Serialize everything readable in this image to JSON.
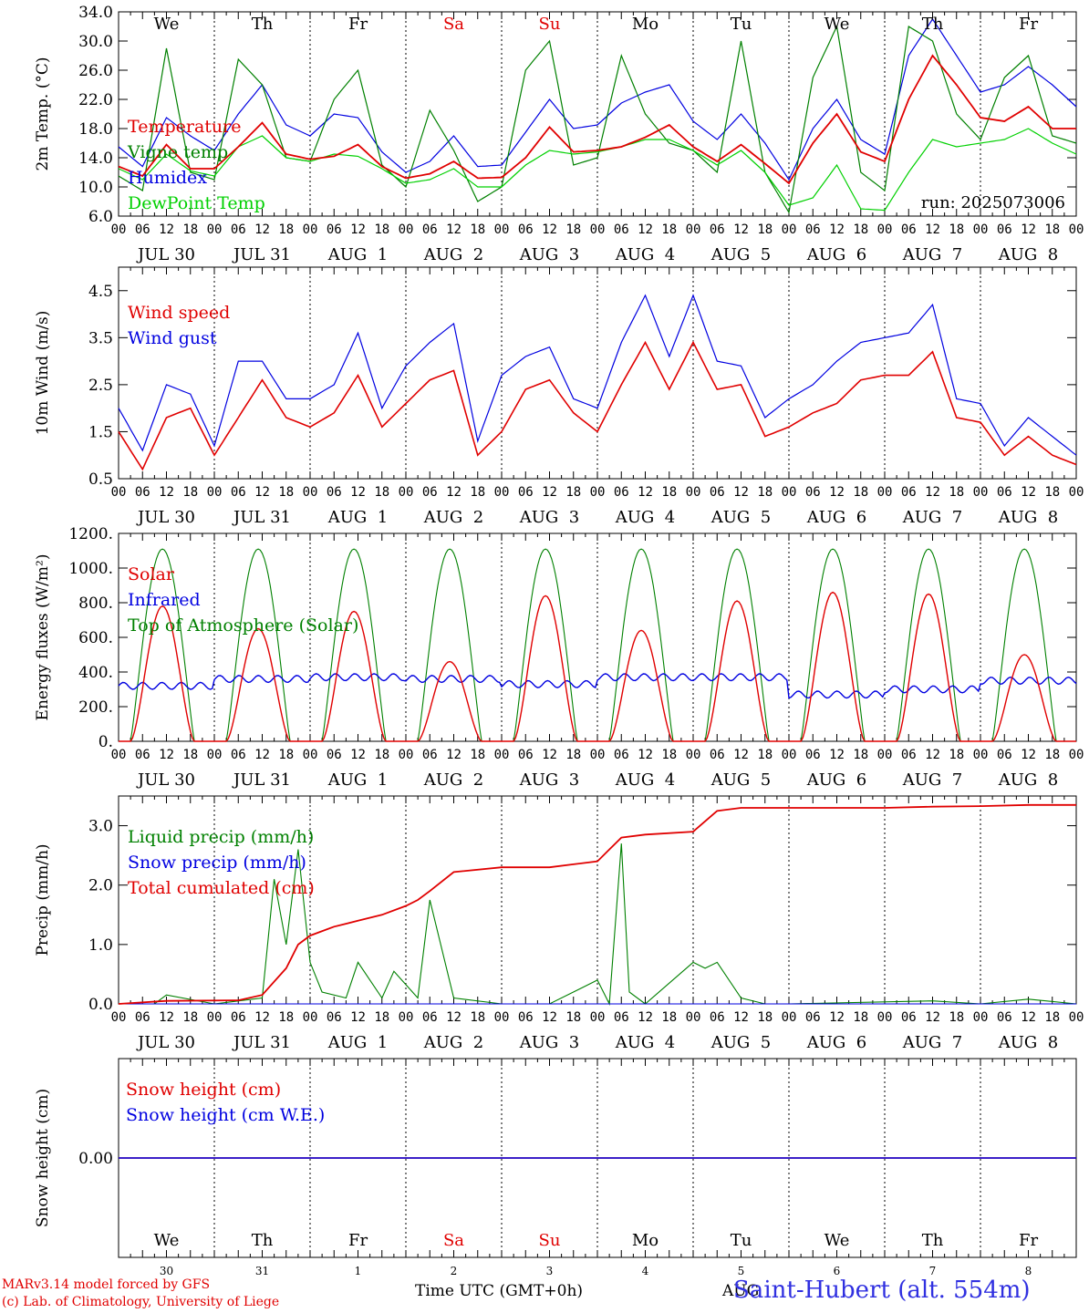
{
  "footer": {
    "model": "MARv3.14 model forced by GFS",
    "copyright": "(c) Lab. of Climatology, University of Liege",
    "time_label": "Time UTC (GMT+0h)",
    "aug_label": "AUG",
    "station": "Saint-Hubert (alt. 554m)"
  },
  "run_label": "run: 2025073006",
  "weekdays": [
    "We",
    "Th",
    "Fr",
    "Sa",
    "Su",
    "Mo",
    "Tu",
    "We",
    "Th",
    "Fr"
  ],
  "weekend_color": "#e00000",
  "day_labels": [
    "JUL 30",
    "JUL 31",
    "AUG  1",
    "AUG  2",
    "AUG  3",
    "AUG  4",
    "AUG  5",
    "AUG  6",
    "AUG  7",
    "AUG  8"
  ],
  "day_numbers": [
    "30",
    "31",
    "1",
    "2",
    "3",
    "4",
    "5",
    "6",
    "7",
    "8"
  ],
  "hour_ticks": [
    "00",
    "06",
    "12",
    "18"
  ],
  "chart_data": [
    {
      "type": "line",
      "ylabel": "2m Temp. (°C)",
      "ylim": [
        6,
        34
      ],
      "yticks": [
        "6.0",
        "10.0",
        "14.0",
        "18.0",
        "22.0",
        "26.0",
        "30.0",
        "34.0"
      ],
      "x_unit": "hours since 2025-07-30 00 UTC",
      "series": [
        {
          "name": "Temperature",
          "color": "#e00000",
          "x": [
            0,
            6,
            12,
            18,
            24,
            30,
            36,
            42,
            48,
            54,
            60,
            66,
            72,
            78,
            84,
            90,
            96,
            102,
            108,
            114,
            120,
            126,
            132,
            138,
            144,
            150,
            156,
            162,
            168,
            174,
            180,
            186,
            192,
            198,
            204,
            210,
            216,
            222,
            228,
            234,
            240
          ],
          "values": [
            12.8,
            11.5,
            15.8,
            12.5,
            12.5,
            15.5,
            18.8,
            14.5,
            13.8,
            14.2,
            15.8,
            12.8,
            11.2,
            11.8,
            13.5,
            11.2,
            11.3,
            14.0,
            18.2,
            14.8,
            15.0,
            15.5,
            16.8,
            18.5,
            15.5,
            13.5,
            15.8,
            13.2,
            10.5,
            16.0,
            20.0,
            14.8,
            13.5,
            22.0,
            28.0,
            24.0,
            19.5,
            19.0,
            21.0,
            18.0,
            18.0
          ]
        },
        {
          "name": "Vigne temp",
          "color": "#008000",
          "x": [
            0,
            6,
            12,
            18,
            24,
            30,
            36,
            42,
            48,
            54,
            60,
            66,
            72,
            78,
            84,
            90,
            96,
            102,
            108,
            114,
            120,
            126,
            132,
            138,
            144,
            150,
            156,
            162,
            168,
            174,
            180,
            186,
            192,
            198,
            204,
            210,
            216,
            222,
            228,
            234,
            240
          ],
          "values": [
            11.5,
            9.5,
            29.0,
            12.0,
            11.0,
            27.5,
            24.0,
            14.0,
            13.5,
            22.0,
            26.0,
            13.0,
            10.0,
            20.5,
            15.0,
            8.0,
            10.0,
            26.0,
            30.0,
            13.0,
            14.0,
            28.0,
            20.0,
            16.0,
            15.0,
            12.0,
            30.0,
            12.0,
            6.5,
            25.0,
            32.0,
            12.0,
            9.5,
            32.0,
            30.0,
            20.0,
            16.5,
            25.0,
            28.0,
            17.0,
            16.0
          ]
        },
        {
          "name": "Humidex",
          "color": "#0000e0",
          "x": [
            0,
            6,
            12,
            18,
            24,
            30,
            36,
            42,
            48,
            54,
            60,
            66,
            72,
            78,
            84,
            90,
            96,
            102,
            108,
            114,
            120,
            126,
            132,
            138,
            144,
            150,
            156,
            162,
            168,
            174,
            180,
            186,
            192,
            198,
            204,
            210,
            216,
            222,
            228,
            234,
            240
          ],
          "values": [
            15.5,
            12.8,
            19.5,
            17.0,
            15.0,
            20.0,
            24.0,
            18.5,
            17.0,
            20.0,
            19.5,
            14.8,
            12.0,
            13.5,
            17.0,
            12.8,
            13.0,
            17.5,
            22.0,
            18.0,
            18.5,
            21.5,
            23.0,
            24.0,
            19.0,
            16.5,
            20.0,
            16.0,
            11.0,
            18.0,
            22.0,
            16.5,
            14.5,
            28.0,
            33.0,
            28.0,
            23.0,
            24.0,
            26.5,
            24.0,
            21.0
          ]
        },
        {
          "name": "DewPoint Temp",
          "color": "#00d000",
          "x": [
            0,
            6,
            12,
            18,
            24,
            30,
            36,
            42,
            48,
            54,
            60,
            66,
            72,
            78,
            84,
            90,
            96,
            102,
            108,
            114,
            120,
            126,
            132,
            138,
            144,
            150,
            156,
            162,
            168,
            174,
            180,
            186,
            192,
            198,
            204,
            210,
            216,
            222,
            228,
            234,
            240
          ],
          "values": [
            12.5,
            11.0,
            14.5,
            12.2,
            11.5,
            15.5,
            17.0,
            14.0,
            13.5,
            14.5,
            14.2,
            12.5,
            10.5,
            11.0,
            12.5,
            10.0,
            10.0,
            13.0,
            15.0,
            14.5,
            14.8,
            15.5,
            16.5,
            16.5,
            15.0,
            13.0,
            15.0,
            12.0,
            7.5,
            8.5,
            13.0,
            7.0,
            6.8,
            12.0,
            16.5,
            15.5,
            16.0,
            16.5,
            18.0,
            16.0,
            14.5
          ]
        }
      ]
    },
    {
      "type": "line",
      "ylabel": "10m Wind (m/s)",
      "ylim": [
        0.5,
        5.0
      ],
      "yticks": [
        "0.5",
        "1.5",
        "2.5",
        "3.5",
        "4.5"
      ],
      "x_unit": "hours since 2025-07-30 00 UTC",
      "series": [
        {
          "name": "Wind speed",
          "color": "#e00000",
          "x": [
            0,
            6,
            12,
            18,
            24,
            30,
            36,
            42,
            48,
            54,
            60,
            66,
            72,
            78,
            84,
            90,
            96,
            102,
            108,
            114,
            120,
            126,
            132,
            138,
            144,
            150,
            156,
            162,
            168,
            174,
            180,
            186,
            192,
            198,
            204,
            210,
            216,
            222,
            228,
            234,
            240
          ],
          "values": [
            1.5,
            0.7,
            1.8,
            2.0,
            1.0,
            1.8,
            2.6,
            1.8,
            1.6,
            1.9,
            2.7,
            1.6,
            2.1,
            2.6,
            2.8,
            1.0,
            1.5,
            2.4,
            2.6,
            1.9,
            1.5,
            2.5,
            3.4,
            2.4,
            3.4,
            2.4,
            2.5,
            1.4,
            1.6,
            1.9,
            2.1,
            2.6,
            2.7,
            2.7,
            3.2,
            1.8,
            1.7,
            1.0,
            1.4,
            1.0,
            0.8
          ]
        },
        {
          "name": "Wind gust",
          "color": "#0000e0",
          "x": [
            0,
            6,
            12,
            18,
            24,
            30,
            36,
            42,
            48,
            54,
            60,
            66,
            72,
            78,
            84,
            90,
            96,
            102,
            108,
            114,
            120,
            126,
            132,
            138,
            144,
            150,
            156,
            162,
            168,
            174,
            180,
            186,
            192,
            198,
            204,
            210,
            216,
            222,
            228,
            234,
            240
          ],
          "values": [
            2.0,
            1.1,
            2.5,
            2.3,
            1.2,
            3.0,
            3.0,
            2.2,
            2.2,
            2.5,
            3.6,
            2.0,
            2.9,
            3.4,
            3.8,
            1.3,
            2.7,
            3.1,
            3.3,
            2.2,
            2.0,
            3.4,
            4.4,
            3.1,
            4.4,
            3.0,
            2.9,
            1.8,
            2.2,
            2.5,
            3.0,
            3.4,
            3.5,
            3.6,
            4.2,
            2.2,
            2.1,
            1.2,
            1.8,
            1.4,
            1.0
          ]
        }
      ]
    },
    {
      "type": "line",
      "ylabel": "Energy fluxes (W/m²)",
      "ylim": [
        0,
        1200
      ],
      "yticks": [
        "0.",
        "200.",
        "400.",
        "600.",
        "800.",
        "1000.",
        "1200."
      ],
      "x_unit": "hours since 2025-07-30 00 UTC",
      "solar_daily_max": [
        780,
        650,
        750,
        460,
        840,
        640,
        810,
        860,
        850,
        500
      ],
      "infrared_daily": [
        320,
        360,
        370,
        360,
        330,
        370,
        370,
        270,
        300,
        350
      ],
      "toa_max": 1110,
      "series": [
        {
          "name": "Solar",
          "color": "#e00000"
        },
        {
          "name": "Infrared",
          "color": "#0000e0"
        },
        {
          "name": "Top of Atmosphere (Solar)",
          "color": "#008000"
        }
      ]
    },
    {
      "type": "line",
      "ylabel": "Precip (mm/h)",
      "ylim": [
        0,
        3.5
      ],
      "yticks": [
        "0.0",
        "1.0",
        "2.0",
        "3.0"
      ],
      "x_unit": "hours since 2025-07-30 00 UTC",
      "series": [
        {
          "name": "Liquid precip (mm/h)",
          "color": "#008000",
          "x": [
            0,
            9,
            12,
            24,
            36,
            39,
            42,
            45,
            48,
            51,
            57,
            60,
            66,
            69,
            75,
            78,
            84,
            96,
            108,
            120,
            123,
            126,
            128,
            132,
            144,
            147,
            150,
            156,
            162,
            168,
            204,
            216,
            228,
            240
          ],
          "values": [
            0,
            0,
            0.15,
            0,
            0.1,
            2.1,
            1.0,
            2.6,
            0.7,
            0.2,
            0.1,
            0.7,
            0.1,
            0.55,
            0.1,
            1.75,
            0.1,
            0,
            0,
            0.4,
            0,
            2.7,
            0.2,
            0,
            0.7,
            0.6,
            0.7,
            0.1,
            0,
            0,
            0.05,
            0,
            0.08,
            0
          ]
        },
        {
          "name": "Snow precip (mm/h)",
          "color": "#0000e0",
          "x": [
            0,
            240
          ],
          "values": [
            0,
            0
          ]
        },
        {
          "name": "Total cumulated (cm)",
          "color": "#e00000",
          "x": [
            0,
            12,
            30,
            36,
            42,
            45,
            48,
            54,
            60,
            66,
            72,
            75,
            78,
            84,
            96,
            108,
            114,
            120,
            123,
            126,
            132,
            144,
            150,
            156,
            168,
            180,
            192,
            204,
            216,
            228,
            240
          ],
          "values": [
            0,
            0.05,
            0.06,
            0.15,
            0.6,
            1.0,
            1.15,
            1.3,
            1.4,
            1.5,
            1.65,
            1.75,
            1.9,
            2.22,
            2.3,
            2.3,
            2.35,
            2.4,
            2.6,
            2.8,
            2.85,
            2.9,
            3.25,
            3.3,
            3.3,
            3.3,
            3.3,
            3.32,
            3.33,
            3.35,
            3.35
          ]
        }
      ]
    },
    {
      "type": "line",
      "ylabel": "Snow height (cm)",
      "ytick_label": "0.00",
      "ylim": [
        -1,
        1
      ],
      "series": [
        {
          "name": "Snow height (cm)",
          "color": "#e00000",
          "x": [
            0,
            240
          ],
          "values": [
            0,
            0
          ]
        },
        {
          "name": "Snow height (cm W.E.)",
          "color": "#0000e0",
          "x": [
            0,
            240
          ],
          "values": [
            0,
            0
          ]
        }
      ]
    }
  ]
}
